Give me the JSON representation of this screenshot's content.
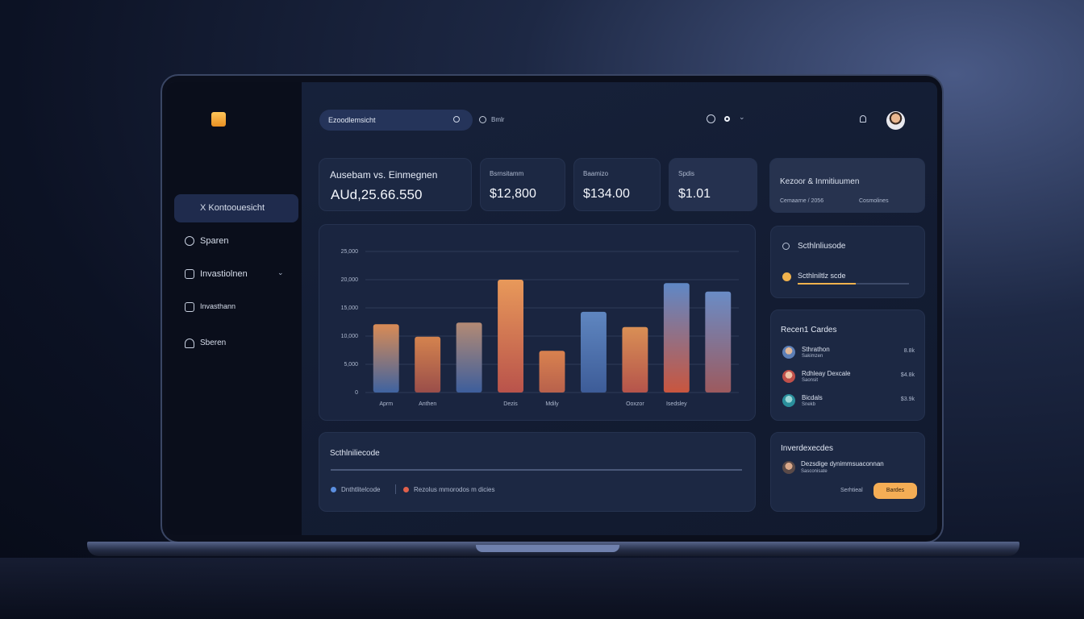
{
  "topbar": {
    "search": "Ezoodlemsicht",
    "link": "Bmlr"
  },
  "sidebar": {
    "nav": [
      "X Kontoouesicht",
      "Sparen",
      "Invastiolnen",
      "Invasthann",
      "Sberen"
    ]
  },
  "cards": [
    {
      "label": "Ausebam vs. Einmegnen",
      "value": "AUd,25.66.550"
    },
    {
      "label": "Bsrnsitamm",
      "value": "$12,800"
    },
    {
      "label": "Baamizo",
      "value": "$134.00"
    },
    {
      "label": "Spdis",
      "value": "$1.01"
    }
  ],
  "summary": {
    "title": "Kezoor & Inmitiuumen",
    "left": "Cemaarne / 2056",
    "right": "Cosmolines"
  },
  "progress": {
    "title": "Scthlnliusode",
    "item": "Scthlniltlz scde"
  },
  "recent": {
    "title": "Recen1 Cardes",
    "rows": [
      {
        "name": "Sthrathon",
        "sub": "Sakimzen",
        "amount": "8.8k"
      },
      {
        "name": "Rdhleay Dexcale",
        "sub": "Saonsit",
        "amount": "$4.8k"
      },
      {
        "name": "Bicdals",
        "sub": "Snekb",
        "amount": "$3.9k"
      }
    ]
  },
  "chart_data": {
    "type": "bar",
    "categories": [
      "Aprm",
      "Anthen",
      null,
      "Dezis",
      "Mdily",
      null,
      "Ooxzor",
      "Isedsley",
      null
    ],
    "values": [
      12100,
      9900,
      12400,
      20000,
      7400,
      14300,
      11600,
      19400,
      17900
    ],
    "colors": [
      "#d98b55",
      "#d4834e",
      "#b38a74",
      "#e8995a",
      "#d9824f",
      "#5f86c0",
      "#d98f55",
      "#5f88c6",
      "#6a8cc6"
    ],
    "base_colors": [
      "#3f63a0",
      "#9a4e4a",
      "#3d5e9c",
      "#b9534b",
      "#b8614c",
      "#3d5c98",
      "#b5544b",
      "#c9563f",
      "#9d5a5e"
    ],
    "ylim": [
      0,
      25000
    ],
    "yticks": [
      0,
      {
        "value": 5000,
        "label": "5,000"
      },
      {
        "value": 10000,
        "label": "10,000"
      },
      {
        "value": 15000,
        "label": "15,000"
      },
      {
        "value": 20000,
        "label": "20,000"
      },
      {
        "value": 25000,
        "label": "25,000"
      }
    ],
    "grid": true
  },
  "bottom": {
    "title": "Scthlniliecode",
    "legend": [
      "Dnthtlitelcode",
      "Rezolus mmorodos m dicies"
    ]
  },
  "invest": {
    "title": "Inverdexecdes",
    "item": "Dezsdige dynimmsuaconnan",
    "sub": "Sasconisate",
    "link": "Serhtieal",
    "button": "Bardes"
  }
}
